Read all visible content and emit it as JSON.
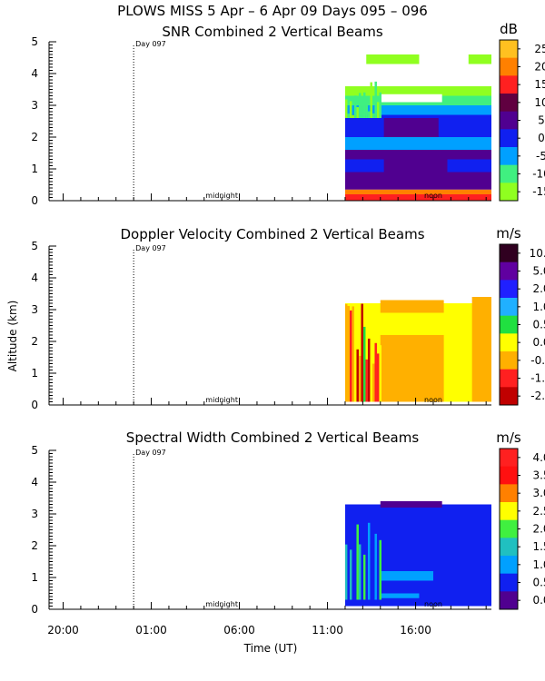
{
  "figure": {
    "title": "PLOWS MISS   5 Apr –  6 Apr 09 Days 095 – 096",
    "xlabel": "Time (UT)",
    "ylabel": "Altitude (km)",
    "x_tick_labels": [
      "20:00",
      "01:00",
      "06:00",
      "11:00",
      "16:00"
    ],
    "annotations": {
      "day_marker": "Day 097",
      "midnight": "midnight",
      "noon": "noon"
    }
  },
  "chart_data": [
    {
      "type": "heatmap",
      "title": "SNR Combined 2 Vertical Beams",
      "unit": "dB",
      "ylabel": "Altitude (km)",
      "ylim": [
        0,
        5
      ],
      "y_ticks": [
        0,
        1,
        2,
        3,
        4,
        5
      ],
      "x_ticks_hours": [
        20,
        25,
        30,
        35,
        40
      ],
      "xlim_hours": [
        19.2,
        44.3
      ],
      "colorbar_labels": [
        "25",
        "20",
        "15",
        "10",
        "5",
        "0",
        "-5",
        "-10",
        "-15"
      ],
      "colorbar_colors": [
        "#ffc020",
        "#ff8000",
        "#ff2020",
        "#600040",
        "#500090",
        "#1020f0",
        "#00a0ff",
        "#40f080",
        "#90ff20"
      ],
      "data_extent_hours": [
        36.0,
        44.3
      ]
    },
    {
      "type": "heatmap",
      "title": "Doppler Velocity Combined 2 Vertical Beams",
      "unit": "m/s",
      "ylabel": "Altitude (km)",
      "ylim": [
        0,
        5
      ],
      "y_ticks": [
        0,
        1,
        2,
        3,
        4,
        5
      ],
      "x_ticks_hours": [
        20,
        25,
        30,
        35,
        40
      ],
      "xlim_hours": [
        19.2,
        44.3
      ],
      "colorbar_labels": [
        "10.0",
        "5.0",
        "2.0",
        "1.0",
        "0.5",
        "0.0",
        "-0.5",
        "-1.0",
        "-2.0"
      ],
      "colorbar_colors": [
        "#300020",
        "#6000a0",
        "#2020ff",
        "#20b0ff",
        "#20e040",
        "#ffff00",
        "#ffb000",
        "#ff2020",
        "#c00000"
      ],
      "data_extent_hours": [
        36.0,
        44.3
      ]
    },
    {
      "type": "heatmap",
      "title": "Spectral Width Combined 2 Vertical Beams",
      "unit": "m/s",
      "ylabel": "Altitude (km)",
      "ylim": [
        0,
        5
      ],
      "y_ticks": [
        0,
        1,
        2,
        3,
        4,
        5
      ],
      "x_ticks_hours": [
        20,
        25,
        30,
        35,
        40
      ],
      "xlim_hours": [
        19.2,
        44.3
      ],
      "colorbar_labels": [
        "4.0",
        "3.5",
        "3.0",
        "2.5",
        "2.0",
        "1.5",
        "1.0",
        "0.5",
        "0.0"
      ],
      "colorbar_colors": [
        "#ff2020",
        "#ff1010",
        "#ff8000",
        "#ffff00",
        "#40f040",
        "#20c0c0",
        "#00a0ff",
        "#1020f0",
        "#500090"
      ],
      "data_extent_hours": [
        36.0,
        44.3
      ]
    }
  ]
}
